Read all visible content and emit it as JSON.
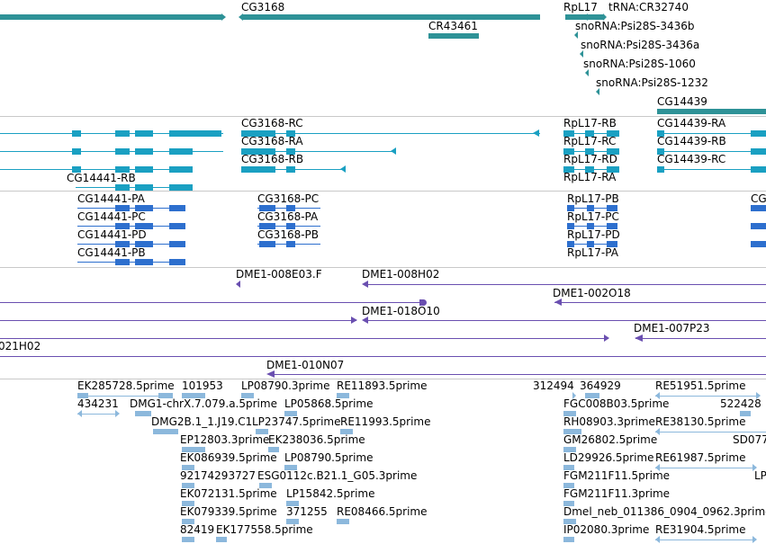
{
  "colors": {
    "gene": "#2e9297",
    "transcript": "#1aa0c2",
    "cds": "#2d6fce",
    "clone": "#6a4fb0",
    "est": "#8cb8dc"
  },
  "genes": {
    "cg3168": "CG3168",
    "cr43461": "CR43461",
    "rpl17": "RpL17",
    "trna": "tRNA:CR32740",
    "sno1": "snoRNA:Psi28S-3436b",
    "sno2": "snoRNA:Psi28S-3436a",
    "sno3": "snoRNA:Psi28S-1060",
    "sno4": "snoRNA:Psi28S-1232",
    "cg14439": "CG14439"
  },
  "transcripts": {
    "cg3168_rc": "CG3168-RC",
    "cg3168_ra": "CG3168-RA",
    "cg3168_rb": "CG3168-RB",
    "cg14441_rb": "CG14441-RB",
    "rpl17_rb": "RpL17-RB",
    "rpl17_rc": "RpL17-RC",
    "rpl17_rd": "RpL17-RD",
    "rpl17_ra": "RpL17-RA",
    "cg14439_ra": "CG14439-RA",
    "cg14439_rb": "CG14439-RB",
    "cg14439_rc": "CG14439-RC"
  },
  "proteins": {
    "cg14441_pa": "CG14441-PA",
    "cg14441_pc": "CG14441-PC",
    "cg14441_pd": "CG14441-PD",
    "cg14441_pb": "CG14441-PB",
    "cg3168_pc": "CG3168-PC",
    "cg3168_pa": "CG3168-PA",
    "cg3168_pb": "CG3168-PB",
    "rpl17_pb": "RpL17-PB",
    "rpl17_pc": "RpL17-PC",
    "rpl17_pd": "RpL17-PD",
    "rpl17_pa": "RpL17-PA",
    "edge_cg": "CG"
  },
  "clones": {
    "c1": "DME1-008E03.F",
    "c2": "DME1-008H02",
    "c3": "DME1-002O18",
    "c4": "DME1-018O10",
    "c5": "DME1-007P23",
    "c6": "021H02",
    "c7": "DME1-010N07"
  },
  "ests": {
    "e1": "EK285728.5prime",
    "e2": "101953",
    "e3": "LP08790.3prime",
    "e4": "RE11893.5prime",
    "e5": "312494",
    "e6": "364929",
    "e7": "RE51951.5prime",
    "e8": "434231",
    "e9": "DMG1-chrX.7.079.a.5prime",
    "e10": "LP05868.5prime",
    "e11": "FGC008B03.5prime",
    "e12": "522428",
    "e13": "DMG2B.1_1.J19.C1",
    "e14": "LP23747.5prime",
    "e15": "RE11993.5prime",
    "e16": "RH08903.3prime",
    "e17": "RE38130.5prime",
    "e18": "EP12803.3prime",
    "e19": "EK238036.5prime",
    "e20": "GM26802.5prime",
    "e21": "SD077",
    "e22": "EK086939.5prime",
    "e23": "LP08790.5prime",
    "e24": "LD29926.5prime",
    "e25": "RE61987.5prime",
    "e26": "92174293727",
    "e27": "ESG0112c.B21.1_G05.3prime",
    "e28": "FGM211F11.5prime",
    "e29": "LP",
    "e30": "EK072131.5prime",
    "e31": "LP15842.5prime",
    "e32": "FGM211F11.3prime",
    "e33": "EK079339.5prime",
    "e34": "371255",
    "e35": "RE08466.5prime",
    "e36": "Dmel_neb_011386_0904_0962.3prime",
    "e37": "82419",
    "e38": "EK177558.5prime",
    "e39": "IP02080.3prime",
    "e40": "RE31904.5prime"
  }
}
